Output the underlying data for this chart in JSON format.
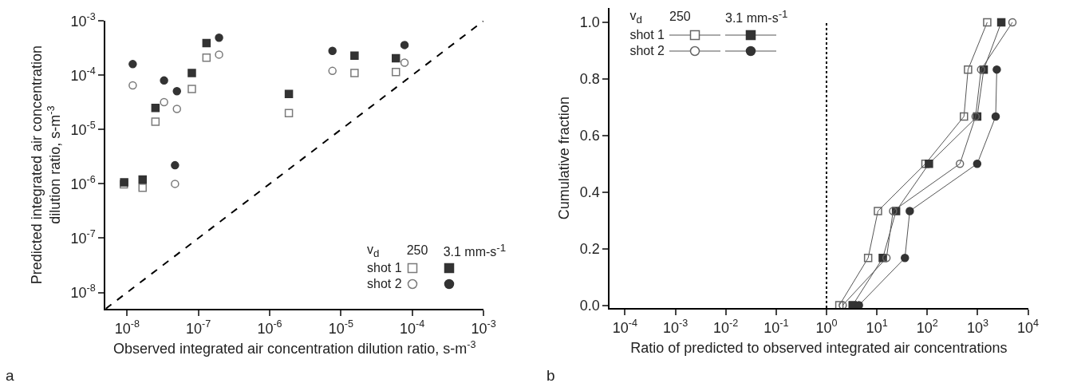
{
  "chart_data": [
    {
      "type": "scatter",
      "xlabel": "Observed integrated air concentration dilution ratio, s-m$^{-3}$",
      "ylabel": "Predicted integrated air concentration\ndilution ratio, s-m$^{-3}$",
      "log": "xy",
      "xlim": [
        5e-09,
        0.001
      ],
      "ylim": [
        5e-09,
        0.001
      ],
      "xticks": [
        {
          "value": 1e-08,
          "label": "10$^{-8}$"
        },
        {
          "value": 1e-07,
          "label": "10$^{-7}$"
        },
        {
          "value": 1e-06,
          "label": "10$^{-6}$"
        },
        {
          "value": 1e-05,
          "label": "10$^{-5}$"
        },
        {
          "value": 0.0001,
          "label": "10$^{-4}$"
        },
        {
          "value": 0.001,
          "label": "10$^{-3}$"
        }
      ],
      "yticks": [
        {
          "value": 1e-08,
          "label": "10$^{-8}$"
        },
        {
          "value": 1e-07,
          "label": "10$^{-7}$"
        },
        {
          "value": 1e-06,
          "label": "10$^{-6}$"
        },
        {
          "value": 1e-05,
          "label": "10$^{-5}$"
        },
        {
          "value": 0.0001,
          "label": "10$^{-4}$"
        },
        {
          "value": 0.001,
          "label": "10$^{-3}$"
        }
      ],
      "grid": false,
      "legend_title": "v$_{d}$",
      "annotations": [
        "250",
        "3.1 mm-s$^{-1}$",
        "shot 1",
        "shot 2",
        "a"
      ],
      "series": [
        {
          "color": "#7a7a7a",
          "marker": "square-open",
          "x": [
            9e-09,
            1.65e-08,
            2.5e-08,
            8.1e-08,
            1.3e-07,
            1.86e-06,
            1.55e-05,
            5.9e-05
          ],
          "values": [
            9.8e-07,
            8.5e-07,
            1.4e-05,
            5.6e-05,
            0.00021,
            2e-05,
            0.00011,
            0.000115
          ]
        },
        {
          "color": "#333333",
          "marker": "square",
          "x": [
            9.1e-09,
            1.65e-08,
            2.5e-08,
            8.1e-08,
            1.3e-07,
            1.86e-06,
            1.55e-05,
            5.9e-05
          ],
          "values": [
            1.07e-06,
            1.2e-06,
            2.5e-05,
            0.00011,
            0.00039,
            4.5e-05,
            0.00023,
            0.000205
          ]
        },
        {
          "color": "#7a7a7a",
          "marker": "circle-open",
          "x": [
            1.2e-08,
            3.3e-08,
            5e-08,
            4.7e-08,
            1.95e-07,
            7.6e-06,
            7.8e-05
          ],
          "values": [
            6.5e-05,
            3.2e-05,
            2.4e-05,
            1e-06,
            0.00024,
            0.00012,
            0.00017
          ]
        },
        {
          "color": "#333333",
          "marker": "circle",
          "x": [
            1.2e-08,
            3.3e-08,
            5e-08,
            4.7e-08,
            1.95e-07,
            7.6e-06,
            7.8e-05
          ],
          "values": [
            0.00016,
            8e-05,
            5.1e-05,
            2.2e-06,
            0.00049,
            0.00028,
            0.00036
          ]
        },
        {
          "type": "line",
          "color": "#000000",
          "marker": "none",
          "line_style": "dashed",
          "x": [
            5e-09,
            0.001
          ],
          "values": [
            5e-09,
            0.001
          ]
        }
      ]
    },
    {
      "type": "line",
      "xlabel": "Ratio of predicted to observed integrated air concentrations",
      "ylabel": "Cumulative fraction",
      "log": "x",
      "xlim": [
        5e-05,
        10000
      ],
      "ylim": [
        -0.01,
        1.05
      ],
      "xticks": [
        {
          "value": 0.0001,
          "label": "10$^{-4}$"
        },
        {
          "value": 0.001,
          "label": "10$^{-3}$"
        },
        {
          "value": 0.01,
          "label": "10$^{-2}$"
        },
        {
          "value": 0.1,
          "label": "10$^{-1}$"
        },
        {
          "value": 1,
          "label": "10$^{0}$"
        },
        {
          "value": 10,
          "label": "10$^{1}$"
        },
        {
          "value": 100,
          "label": "10$^{2}$"
        },
        {
          "value": 1000,
          "label": "10$^{3}$"
        },
        {
          "value": 10000,
          "label": "10$^{4}$"
        }
      ],
      "yticks": [
        {
          "value": 0,
          "label": "0.0"
        },
        {
          "value": 0.2,
          "label": "0.2"
        },
        {
          "value": 0.4,
          "label": "0.4"
        },
        {
          "value": 0.6,
          "label": "0.6"
        },
        {
          "value": 0.8,
          "label": "0.8"
        },
        {
          "value": 1,
          "label": "1.0"
        }
      ],
      "grid": false,
      "legend_title": "v$_{d}$",
      "annotations": [
        "250",
        "3.1 mm-s$^{-1}$",
        "shot 1",
        "shot 2",
        "b"
      ],
      "ref_lines": [
        {
          "axis": "x",
          "value": 1,
          "line_style": "dotted",
          "color": "#000000"
        }
      ],
      "series": [
        {
          "color": "#666666",
          "marker": "square-open",
          "x": [
            1.8,
            6.7,
            10.5,
            92,
            535,
            645,
            1550
          ],
          "values": [
            0,
            0.167,
            0.333,
            0.5,
            0.667,
            0.833,
            1
          ]
        },
        {
          "color": "#333333",
          "marker": "square",
          "x": [
            3.3,
            13.1,
            24,
            108,
            980,
            1320,
            2950
          ],
          "values": [
            0,
            0.167,
            0.333,
            0.5,
            0.667,
            0.833,
            1
          ]
        },
        {
          "color": "#666666",
          "marker": "circle-open",
          "x": [
            2.1,
            15.5,
            21,
            445,
            910,
            1170,
            4900
          ],
          "values": [
            0,
            0.167,
            0.333,
            0.5,
            0.667,
            0.833,
            1
          ]
        },
        {
          "color": "#333333",
          "marker": "circle",
          "x": [
            4.4,
            36,
            45,
            980,
            2280,
            2400
          ],
          "values": [
            0,
            0.167,
            0.333,
            0.5,
            0.667,
            0.833
          ]
        }
      ]
    }
  ]
}
